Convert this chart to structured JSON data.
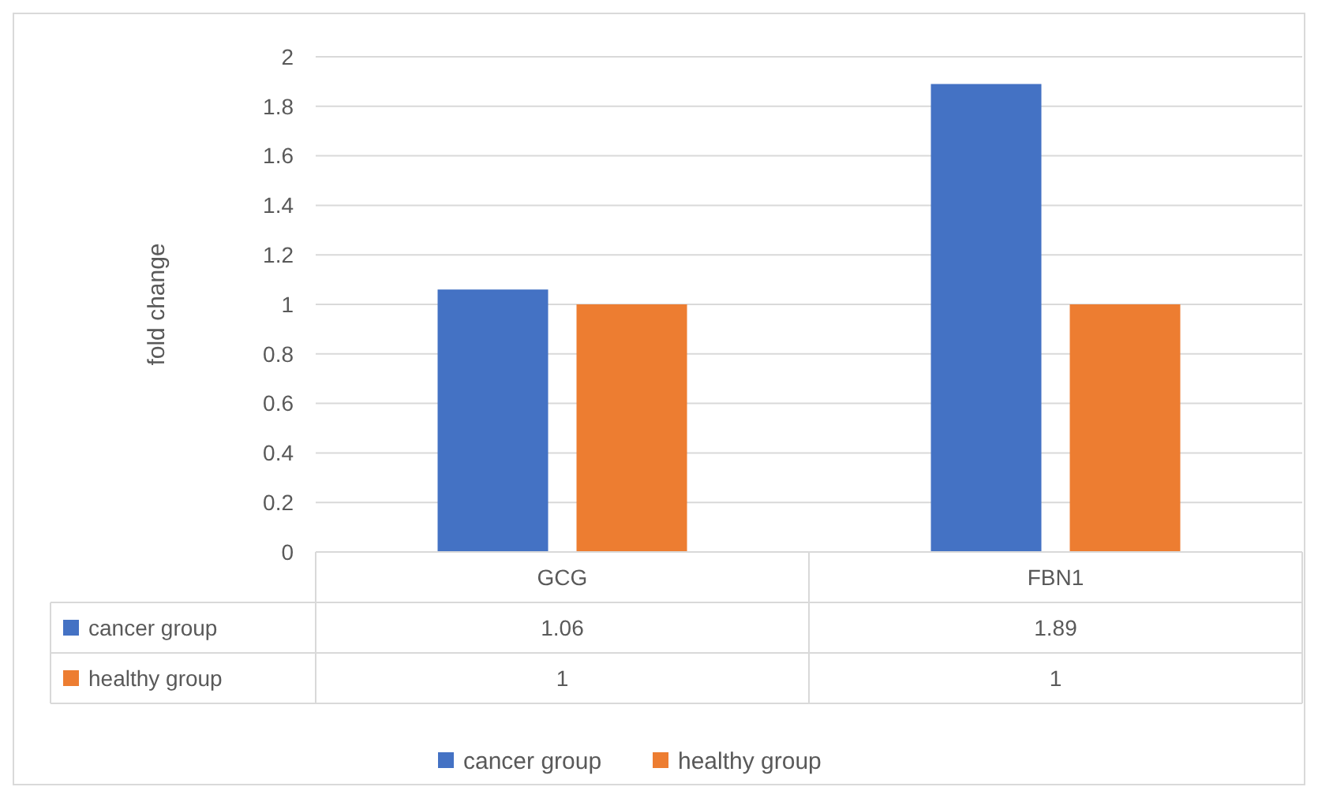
{
  "chart_data": {
    "type": "bar",
    "ylabel": "fold change",
    "categories": [
      "GCG",
      "FBN1"
    ],
    "series": [
      {
        "name": "cancer group",
        "color": "#4472c4",
        "values": [
          1.06,
          1.89
        ]
      },
      {
        "name": "healthy group",
        "color": "#ed7d31",
        "values": [
          1,
          1
        ]
      }
    ],
    "ylim": [
      0,
      2
    ],
    "yticks": [
      0,
      0.2,
      0.4,
      0.6,
      0.8,
      1,
      1.2,
      1.4,
      1.6,
      1.8,
      2
    ],
    "grid": "y",
    "legend": "bottom",
    "data_labels": true
  }
}
